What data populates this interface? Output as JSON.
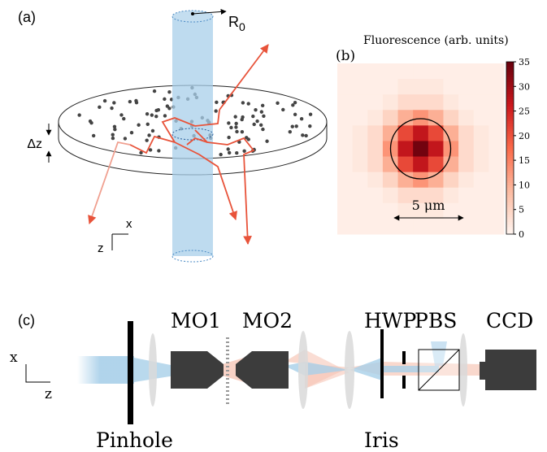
{
  "panel_a": {
    "label": "(a)",
    "radius_label": "R",
    "radius_subscript": "0",
    "thickness_label": "Δz",
    "axis_x": "x",
    "axis_z": "z"
  },
  "panel_b": {
    "label": "(b)",
    "title": "Fluorescence (arb. units)",
    "scale_label": "5 μm",
    "heatmap": {
      "values": [
        [
          1,
          1,
          1,
          1,
          1,
          1,
          1,
          1,
          1,
          1,
          1
        ],
        [
          1,
          1,
          1,
          1,
          2,
          2,
          2,
          1,
          1,
          1,
          1
        ],
        [
          1,
          1,
          1,
          2,
          4,
          4,
          4,
          2,
          1,
          1,
          1
        ],
        [
          1,
          1,
          2,
          5,
          10,
          13,
          10,
          5,
          2,
          1,
          1
        ],
        [
          1,
          2,
          4,
          10,
          21,
          27,
          21,
          10,
          4,
          2,
          1
        ],
        [
          1,
          2,
          4,
          13,
          27,
          34,
          27,
          13,
          4,
          2,
          1
        ],
        [
          1,
          2,
          4,
          10,
          21,
          27,
          21,
          10,
          4,
          2,
          1
        ],
        [
          1,
          1,
          2,
          5,
          10,
          13,
          10,
          5,
          2,
          1,
          1
        ],
        [
          1,
          1,
          1,
          2,
          4,
          4,
          4,
          2,
          1,
          1,
          1
        ],
        [
          1,
          1,
          1,
          1,
          2,
          2,
          2,
          1,
          1,
          1,
          1
        ],
        [
          1,
          1,
          1,
          1,
          1,
          1,
          1,
          1,
          1,
          1,
          1
        ]
      ],
      "colorbar": {
        "lim": [
          0,
          35
        ],
        "ticks": [
          0,
          5,
          10,
          15,
          20,
          25,
          30,
          35
        ]
      }
    }
  },
  "panel_c": {
    "label": "(c)",
    "components": [
      "MO1",
      "MO2",
      "HWP",
      "PBS",
      "CCD"
    ],
    "bottom_labels": [
      "Pinhole",
      "Iris"
    ],
    "axis_x": "x",
    "axis_z": "z"
  }
}
